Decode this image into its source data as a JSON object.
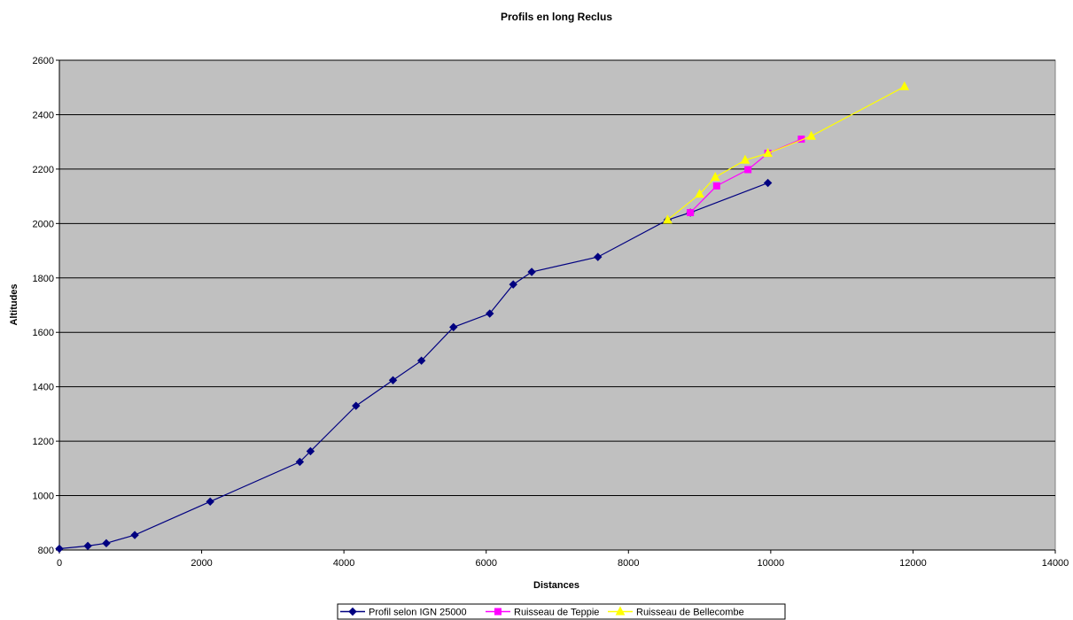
{
  "chart_data": {
    "type": "line",
    "title": "Profils en long Reclus",
    "xlabel": "Distances",
    "ylabel": "Altitudes",
    "xlim": [
      0,
      14000
    ],
    "ylim": [
      800,
      2600
    ],
    "xticks": [
      0,
      2000,
      4000,
      6000,
      8000,
      10000,
      12000,
      14000
    ],
    "yticks": [
      800,
      1000,
      1200,
      1400,
      1600,
      1800,
      2000,
      2200,
      2400,
      2600
    ],
    "grid": "horizontal",
    "legend_position": "bottom",
    "plot_background": "#C0C0C0",
    "series": [
      {
        "name": "Profil selon IGN 25000",
        "color": "#000080",
        "marker": "diamond",
        "x": [
          0,
          400,
          660,
          1060,
          2120,
          3380,
          3530,
          4170,
          4690,
          5090,
          5540,
          6050,
          6380,
          6640,
          7570,
          8550,
          8870,
          9960
        ],
        "y": [
          805,
          815,
          825,
          855,
          978,
          1124,
          1163,
          1330,
          1424,
          1496,
          1619,
          1669,
          1776,
          1822,
          1877,
          2013,
          2040,
          2149
        ]
      },
      {
        "name": "Ruisseau de Teppie",
        "color": "#FF00FF",
        "marker": "square",
        "x": [
          8870,
          9240,
          9680,
          9960,
          10430
        ],
        "y": [
          2040,
          2138,
          2198,
          2258,
          2310
        ]
      },
      {
        "name": "Ruisseau de Bellecombe",
        "color": "#FFFF00",
        "marker": "triangle",
        "x": [
          8550,
          9000,
          9220,
          9640,
          9960,
          10570,
          11880
        ],
        "y": [
          2013,
          2108,
          2170,
          2233,
          2258,
          2321,
          2503
        ]
      }
    ]
  }
}
